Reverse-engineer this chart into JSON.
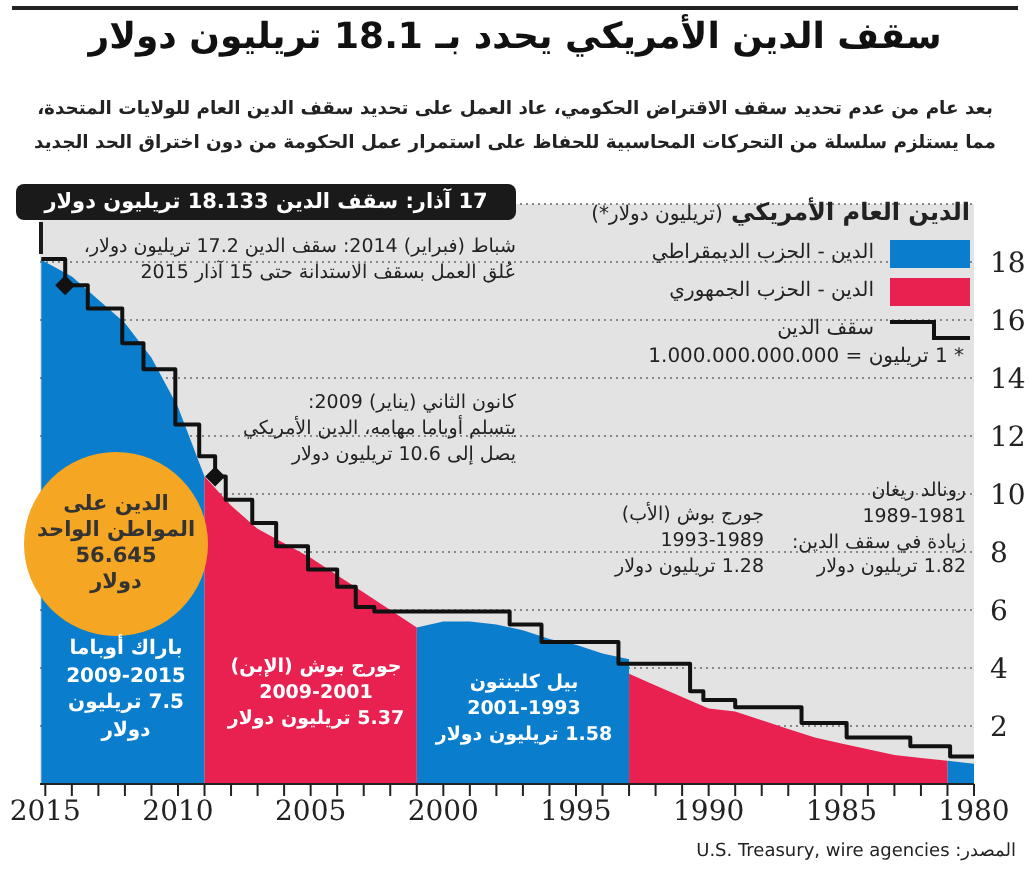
{
  "chart_data": {
    "type": "area",
    "title": "سقف الدين الأمريكي يحدد بـ 18.1 تريليون دولار",
    "subtitle": "بعد عام من عدم تحديد سقف الاقتراض الحكومي، عاد العمل على تحديد سقف الدين العام للولايات المتحدة،\nمما يستلزم سلسلة من التحركات المحاسبية للحفاظ على استمرار عمل الحكومة من دون اختراق الحد الجديد",
    "ylabel": "الدين العام الأمريكي (تريليون دولار*)",
    "series": [
      {
        "name": "الدين - الحزب الديمقراطي",
        "color": "#0a7dcc",
        "x": [
          2015.15,
          2015,
          2014,
          2013,
          2012,
          2011,
          2010,
          2009,
          2008.9,
          2001,
          2000,
          1999,
          1998,
          1997,
          1996,
          1995,
          1994,
          1993,
          1992.9,
          1981,
          1980
        ],
        "values": [
          18.1,
          18.0,
          17.5,
          16.7,
          15.9,
          14.7,
          13.0,
          10.6,
          null,
          5.4,
          5.6,
          5.6,
          5.5,
          5.3,
          5.0,
          4.8,
          4.5,
          4.3,
          null,
          0.8,
          0.7
        ]
      },
      {
        "name": "الدين - الحزب الجمهوري",
        "color": "#e82150",
        "x": [
          2009,
          2008,
          2007,
          2006,
          2005,
          2004,
          2003,
          2002,
          2001,
          2000.9,
          1993.1,
          1993,
          1992,
          1991,
          1990,
          1989,
          1988,
          1987,
          1986,
          1985,
          1984,
          1983,
          1982,
          1981
        ],
        "values": [
          10.6,
          9.6,
          8.8,
          8.3,
          7.8,
          7.2,
          6.6,
          6.0,
          5.4,
          null,
          null,
          3.8,
          3.4,
          3.0,
          2.6,
          2.5,
          2.2,
          1.9,
          1.6,
          1.4,
          1.2,
          1.0,
          0.9,
          0.8
        ]
      },
      {
        "name": "سقف الدين",
        "color": "#111111",
        "type": "step",
        "x": [
          2015.15,
          2014.25,
          2013.4,
          2012.1,
          2011.3,
          2010.1,
          2009.2,
          2008.6,
          2008.2,
          2007.2,
          2006.3,
          2005.1,
          2004.0,
          2003.3,
          2002.6,
          1997.5,
          1996.3,
          1993.4,
          1990.7,
          1990.2,
          1989.0,
          1986.5,
          1984.8,
          1982.4,
          1980.9,
          1980.0
        ],
        "values": [
          18.1,
          17.2,
          16.4,
          15.2,
          14.3,
          12.4,
          11.3,
          10.6,
          9.8,
          9.0,
          8.2,
          7.4,
          6.8,
          6.1,
          5.95,
          5.5,
          4.9,
          4.15,
          3.2,
          2.9,
          2.65,
          2.1,
          1.6,
          1.3,
          0.95,
          0.9
        ]
      }
    ],
    "xlim": [
      2015.2,
      1980
    ],
    "xticks": [
      2015,
      {
        "value": 2014,
        "label": null
      },
      {
        "value": 2013,
        "label": null
      },
      {
        "value": 2012,
        "label": null
      },
      {
        "value": 2011,
        "label": null
      },
      2010,
      {
        "value": 2009,
        "label": null
      },
      {
        "value": 2008,
        "label": null
      },
      {
        "value": 2007,
        "label": null
      },
      {
        "value": 2006,
        "label": null
      },
      2005,
      {
        "value": 2004,
        "label": null
      },
      {
        "value": 2003,
        "label": null
      },
      {
        "value": 2002,
        "label": null
      },
      {
        "value": 2001,
        "label": null
      },
      2000,
      {
        "value": 1999,
        "label": null
      },
      {
        "value": 1998,
        "label": null
      },
      {
        "value": 1997,
        "label": null
      },
      {
        "value": 1996,
        "label": null
      },
      1995,
      {
        "value": 1994,
        "label": null
      },
      {
        "value": 1993,
        "label": null
      },
      {
        "value": 1992,
        "label": null
      },
      {
        "value": 1991,
        "label": null
      },
      1990,
      {
        "value": 1989,
        "label": null
      },
      {
        "value": 1988,
        "label": null
      },
      {
        "value": 1987,
        "label": null
      },
      {
        "value": 1986,
        "label": null
      },
      1985,
      {
        "value": 1984,
        "label": null
      },
      {
        "value": 1983,
        "label": null
      },
      {
        "value": 1982,
        "label": null
      },
      {
        "value": 1981,
        "label": null
      },
      1980
    ],
    "ylim": [
      0,
      20
    ],
    "yticks": [
      2,
      4,
      6,
      8,
      10,
      12,
      14,
      16,
      18
    ],
    "grid": "y",
    "legend": "top right",
    "annotations": [
      {
        "text": "17 آذار: سقف الدين 18.133 تريليون دولار",
        "x": 2015.15,
        "y": 18.133
      },
      {
        "text": "شباط (فبراير) 2014: سقف الدين 17.2 تريليون دولار،\nعُلق العمل بسقف الاستدانة حتى 15 آذار 2015",
        "x": 2014.25,
        "y": 17.2
      },
      {
        "text": "كانون الثاني (يناير) 2009:\nيتسلم أوباما مهامه، الدين الأمريكي\nيصل إلى 10.6 تريليون دولار",
        "x": 2008.6,
        "y": 10.6
      },
      "الدين على\nالمواطن الواحد\n56.645\nدولار",
      "باراك أوباما\n2009-2015\n7.5 تريليون\nدولار",
      "جورج بوش (الإبن)\n2009-2001\n5.37 تريليون دولار",
      "بيل كلينتون\n2001-1993\n1.58 تريليون دولار",
      "رونالد ريغان\n1989-1981\nزيادة في سقف الدين:\n1.82 تريليون دولار",
      "جورج بوش (الأب)\n1993-1989\n1.28 تريليون دولار",
      "* 1 تريليون = 1.000.000.000.000",
      "المصدر: U.S. Treasury, wire agencies"
    ]
  }
}
